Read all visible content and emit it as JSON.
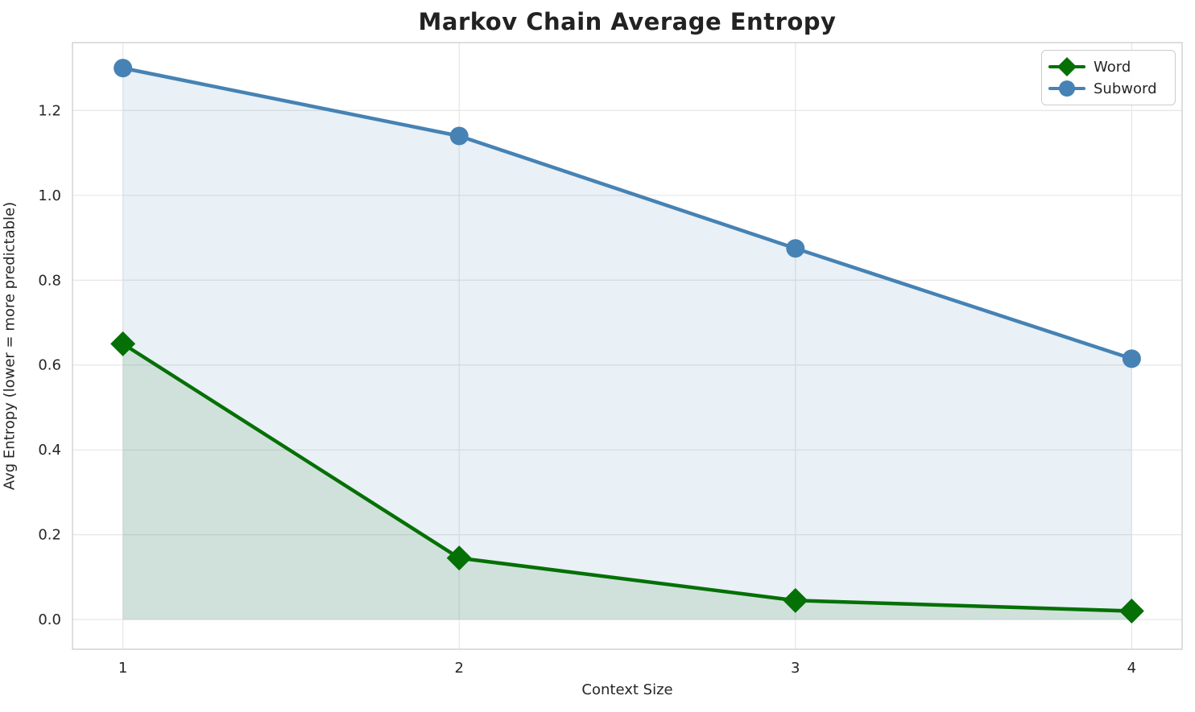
{
  "chart_data": {
    "type": "line",
    "title": "Markov Chain Average Entropy",
    "xlabel": "Context Size",
    "ylabel": "Avg Entropy (lower = more predictable)",
    "x": [
      1,
      2,
      3,
      4
    ],
    "xtick_labels": [
      "1",
      "2",
      "3",
      "4"
    ],
    "ytick_values": [
      0.0,
      0.2,
      0.4,
      0.6,
      0.8,
      1.0,
      1.2
    ],
    "ytick_labels": [
      "0.0",
      "0.2",
      "0.4",
      "0.6",
      "0.8",
      "1.0",
      "1.2"
    ],
    "xlim": [
      0.85,
      4.15
    ],
    "ylim": [
      -0.07,
      1.36
    ],
    "grid": true,
    "legend_position": "upper right",
    "series": [
      {
        "name": "Word",
        "values": [
          0.65,
          0.145,
          0.045,
          0.02
        ],
        "color": "#057005",
        "marker": "diamond",
        "fill_to_zero": true,
        "fill_opacity": 0.11
      },
      {
        "name": "Subword",
        "values": [
          1.3,
          1.14,
          0.875,
          0.615
        ],
        "color": "#4682b4",
        "marker": "circle",
        "fill_to_zero": true,
        "fill_opacity": 0.12
      }
    ],
    "colors": {
      "text": "#262626",
      "gridline": "#e6e6e6",
      "spine": "#cfcfcf",
      "background": "#ffffff"
    }
  }
}
